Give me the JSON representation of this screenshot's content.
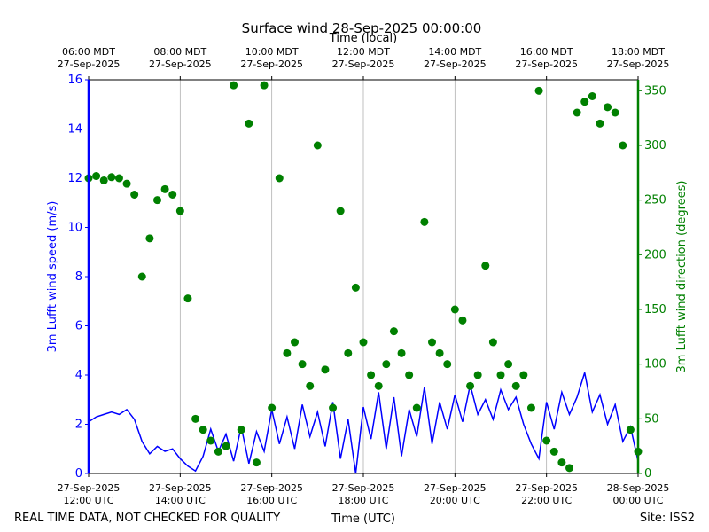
{
  "chart_data": {
    "type": "line",
    "title": "Surface wind 28-Sep-2025 00:00:00",
    "top_xlabel": "Time (local)",
    "xlabel": "Time (UTC)",
    "ylabel": "3m Lufft wind speed (m/s)",
    "y2label": "3m Lufft wind direction (degrees)",
    "footer_left": "REAL TIME DATA, NOT CHECKED FOR QUALITY",
    "footer_right": "Site: ISS2",
    "grid": true,
    "xlim": [
      "2025-09-27T12:00",
      "2025-09-28T00:00"
    ],
    "xticks": [
      {
        "value": "2025-09-27T12:00",
        "label": "27-Sep-2025\n12:00 UTC"
      },
      {
        "value": "2025-09-27T14:00",
        "label": "27-Sep-2025\n14:00 UTC"
      },
      {
        "value": "2025-09-27T16:00",
        "label": "27-Sep-2025\n16:00 UTC"
      },
      {
        "value": "2025-09-27T18:00",
        "label": "27-Sep-2025\n18:00 UTC"
      },
      {
        "value": "2025-09-27T20:00",
        "label": "27-Sep-2025\n20:00 UTC"
      },
      {
        "value": "2025-09-27T22:00",
        "label": "27-Sep-2025\n22:00 UTC"
      },
      {
        "value": "2025-09-28T00:00",
        "label": "28-Sep-2025\n00:00 UTC"
      }
    ],
    "top_xticks": [
      {
        "value": "2025-09-27T12:00",
        "label": "06:00 MDT\n27-Sep-2025"
      },
      {
        "value": "2025-09-27T14:00",
        "label": "08:00 MDT\n27-Sep-2025"
      },
      {
        "value": "2025-09-27T16:00",
        "label": "10:00 MDT\n27-Sep-2025"
      },
      {
        "value": "2025-09-27T18:00",
        "label": "12:00 MDT\n27-Sep-2025"
      },
      {
        "value": "2025-09-27T20:00",
        "label": "14:00 MDT\n27-Sep-2025"
      },
      {
        "value": "2025-09-27T22:00",
        "label": "16:00 MDT\n27-Sep-2025"
      },
      {
        "value": "2025-09-28T00:00",
        "label": "18:00 MDT\n27-Sep-2025"
      }
    ],
    "ylim": [
      0,
      16
    ],
    "yticks": [
      0,
      2,
      4,
      6,
      8,
      10,
      12,
      14,
      16
    ],
    "y2lim": [
      0,
      360
    ],
    "y2ticks": [
      0,
      50,
      100,
      150,
      200,
      250,
      300,
      350
    ],
    "x": [
      "2025-09-27T12:00",
      "2025-09-27T12:10",
      "2025-09-27T12:20",
      "2025-09-27T12:30",
      "2025-09-27T12:40",
      "2025-09-27T12:50",
      "2025-09-27T13:00",
      "2025-09-27T13:10",
      "2025-09-27T13:20",
      "2025-09-27T13:30",
      "2025-09-27T13:40",
      "2025-09-27T13:50",
      "2025-09-27T14:00",
      "2025-09-27T14:10",
      "2025-09-27T14:20",
      "2025-09-27T14:30",
      "2025-09-27T14:40",
      "2025-09-27T14:50",
      "2025-09-27T15:00",
      "2025-09-27T15:10",
      "2025-09-27T15:20",
      "2025-09-27T15:30",
      "2025-09-27T15:40",
      "2025-09-27T15:50",
      "2025-09-27T16:00",
      "2025-09-27T16:10",
      "2025-09-27T16:20",
      "2025-09-27T16:30",
      "2025-09-27T16:40",
      "2025-09-27T16:50",
      "2025-09-27T17:00",
      "2025-09-27T17:10",
      "2025-09-27T17:20",
      "2025-09-27T17:30",
      "2025-09-27T17:40",
      "2025-09-27T17:50",
      "2025-09-27T18:00",
      "2025-09-27T18:10",
      "2025-09-27T18:20",
      "2025-09-27T18:30",
      "2025-09-27T18:40",
      "2025-09-27T18:50",
      "2025-09-27T19:00",
      "2025-09-27T19:10",
      "2025-09-27T19:20",
      "2025-09-27T19:30",
      "2025-09-27T19:40",
      "2025-09-27T19:50",
      "2025-09-27T20:00",
      "2025-09-27T20:10",
      "2025-09-27T20:20",
      "2025-09-27T20:30",
      "2025-09-27T20:40",
      "2025-09-27T20:50",
      "2025-09-27T21:00",
      "2025-09-27T21:10",
      "2025-09-27T21:20",
      "2025-09-27T21:30",
      "2025-09-27T21:40",
      "2025-09-27T21:50",
      "2025-09-27T22:00",
      "2025-09-27T22:10",
      "2025-09-27T22:20",
      "2025-09-27T22:30",
      "2025-09-27T22:40",
      "2025-09-27T22:50",
      "2025-09-27T23:00",
      "2025-09-27T23:10",
      "2025-09-27T23:20",
      "2025-09-27T23:30",
      "2025-09-27T23:40",
      "2025-09-27T23:50",
      "2025-09-28T00:00"
    ],
    "series": [
      {
        "type": "line",
        "color": "#0000ff",
        "values": [
          2.1,
          2.3,
          2.4,
          2.5,
          2.4,
          2.6,
          2.2,
          1.3,
          0.8,
          1.1,
          0.9,
          1.0,
          0.6,
          0.3,
          0.1,
          0.7,
          1.8,
          0.9,
          1.6,
          0.5,
          1.9,
          0.4,
          1.7,
          0.9,
          2.6,
          1.2,
          2.3,
          1.0,
          2.8,
          1.5,
          2.5,
          1.1,
          2.9,
          0.6,
          2.2,
          0.0,
          2.7,
          1.4,
          3.3,
          1.0,
          3.1,
          0.7,
          2.6,
          1.5,
          3.5,
          1.2,
          2.9,
          1.8,
          3.2,
          2.1,
          3.6,
          2.4,
          3.0,
          2.2,
          3.4,
          2.6,
          3.1,
          2.0,
          1.2,
          0.6,
          2.9,
          1.8,
          3.3,
          2.4,
          3.1,
          4.1,
          2.5,
          3.2,
          2.0,
          2.8,
          1.3,
          1.9,
          0.5
        ]
      },
      {
        "type": "scatter",
        "axis": "y2",
        "color": "#008000",
        "values": [
          270,
          272,
          268,
          271,
          270,
          265,
          255,
          180,
          215,
          250,
          260,
          255,
          240,
          160,
          50,
          40,
          30,
          20,
          25,
          355,
          40,
          320,
          10,
          355,
          60,
          270,
          110,
          120,
          100,
          80,
          300,
          95,
          60,
          240,
          110,
          170,
          120,
          90,
          80,
          100,
          130,
          110,
          90,
          60,
          230,
          120,
          110,
          100,
          150,
          140,
          80,
          90,
          190,
          120,
          90,
          100,
          80,
          90,
          60,
          350,
          30,
          20,
          10,
          5,
          330,
          340,
          345,
          320,
          335,
          330,
          300,
          40,
          20
        ]
      }
    ]
  }
}
